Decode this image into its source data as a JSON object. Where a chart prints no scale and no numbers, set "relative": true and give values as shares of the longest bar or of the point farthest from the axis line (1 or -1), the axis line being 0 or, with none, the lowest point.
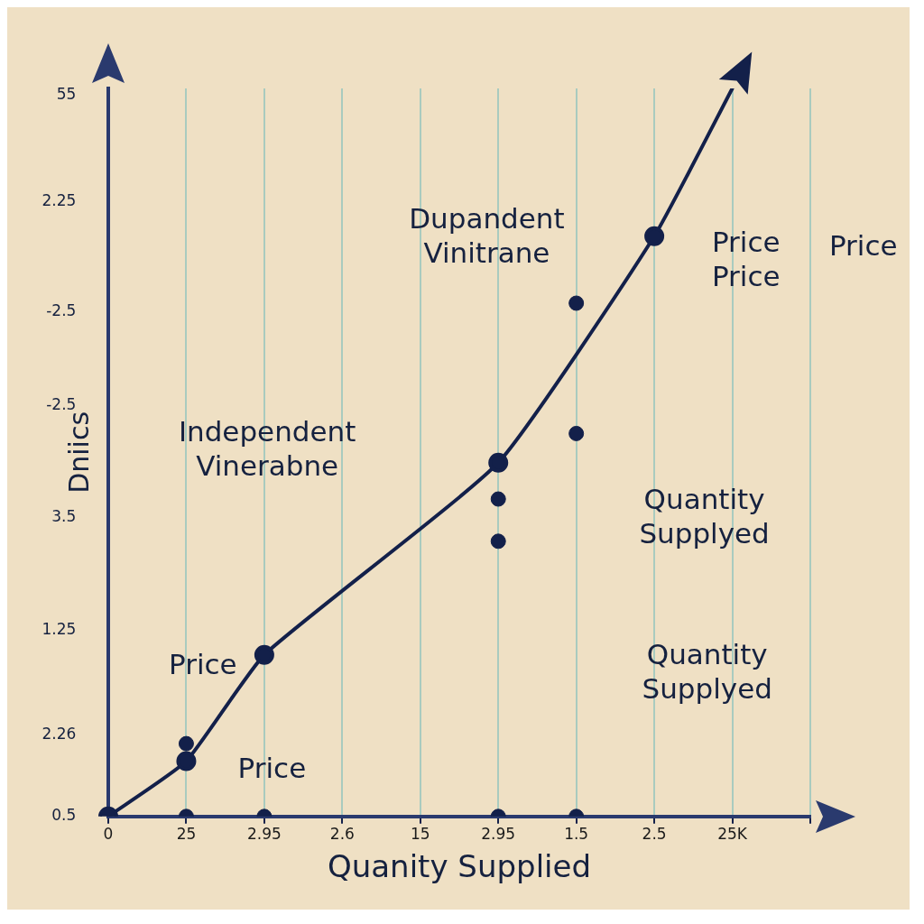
{
  "chart_data": {
    "type": "line",
    "xlabel": "Quanity Supplied",
    "ylabel": "Dniics",
    "relative": true,
    "categories": [
      "0",
      "25",
      "2.95",
      "2.6",
      "15",
      "2.95",
      "1.5",
      "2.5",
      "25K",
      null
    ],
    "grid": "x",
    "marker": "circle",
    "line_style": "solid",
    "series": [
      {
        "color": "#13204a",
        "values": [
          0,
          0.076,
          0.222,
          null,
          null,
          0.486,
          null,
          0.797,
          1,
          null
        ]
      },
      {
        "type": "scatter",
        "color": "#13204a",
        "values": [
          null,
          0.1,
          null,
          null,
          null,
          0.436,
          0.705,
          null,
          null,
          null
        ]
      },
      {
        "type": "scatter",
        "color": "#13204a",
        "values": [
          null,
          null,
          null,
          null,
          null,
          0.378,
          0.526,
          null,
          null,
          null
        ]
      },
      {
        "type": "scatter",
        "color": "#13204a",
        "values": [
          null,
          0,
          0,
          null,
          null,
          0,
          0,
          null,
          null,
          null
        ]
      }
    ],
    "annotations": [
      "Dupandent Vinitrane",
      "Independent Vinerabne",
      "Price",
      "Price",
      "Price Price",
      "Price",
      "Quantity Supplyed",
      "Quantity Supplyed",
      "55",
      "2.25",
      "-2.5",
      "-2.5",
      "3.5",
      "1.25",
      "2.26",
      "0.5"
    ]
  }
}
